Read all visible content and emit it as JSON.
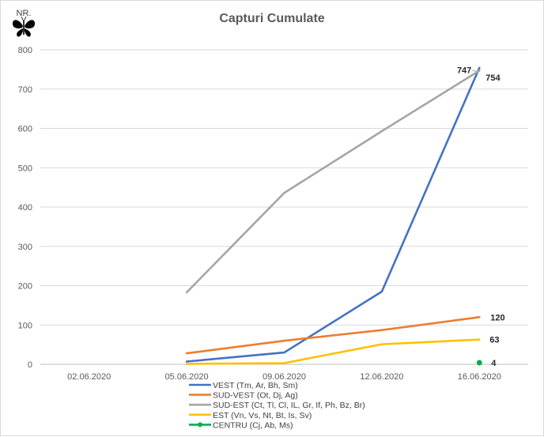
{
  "chart_data": {
    "type": "line",
    "title": "Capturi Cumulate",
    "y_unit_label": "NR.",
    "logo_icon": "butterfly-icon",
    "categories": [
      "02.06.2020",
      "05.06.2020",
      "09.06.2020",
      "12.06.2020",
      "16.06.2020"
    ],
    "y_ticks": [
      "0",
      "100",
      "200",
      "300",
      "400",
      "500",
      "600",
      "700",
      "800"
    ],
    "ylim": [
      0,
      800
    ],
    "grid": true,
    "legend_position": "bottom-left",
    "series": [
      {
        "name": "VEST (Tm, Ar, Bh, Sm)",
        "color": "#4472c4",
        "values": [
          null,
          7,
          30,
          185,
          754
        ],
        "end_label": "754"
      },
      {
        "name": "SUD-VEST (Ot, Dj, Ag)",
        "color": "#ed7d31",
        "values": [
          null,
          28,
          60,
          87,
          120
        ],
        "end_label": "120"
      },
      {
        "name": "SUD-EST (Ct, Tl, Cl, IL, Gr, If, Ph, Bz, Br)",
        "color": "#a5a5a5",
        "values": [
          null,
          183,
          436,
          593,
          747
        ],
        "end_label": "747"
      },
      {
        "name": "EST (Vn, Vs, Nt, Bt, Is, Sv)",
        "color": "#ffc000",
        "values": [
          null,
          1,
          3,
          51,
          63
        ],
        "end_label": "63"
      },
      {
        "name": "CENTRU (Cj, Ab, Ms)",
        "color": "#00b050",
        "values": [
          null,
          null,
          null,
          null,
          4
        ],
        "end_label": "4",
        "marker": true
      }
    ]
  }
}
